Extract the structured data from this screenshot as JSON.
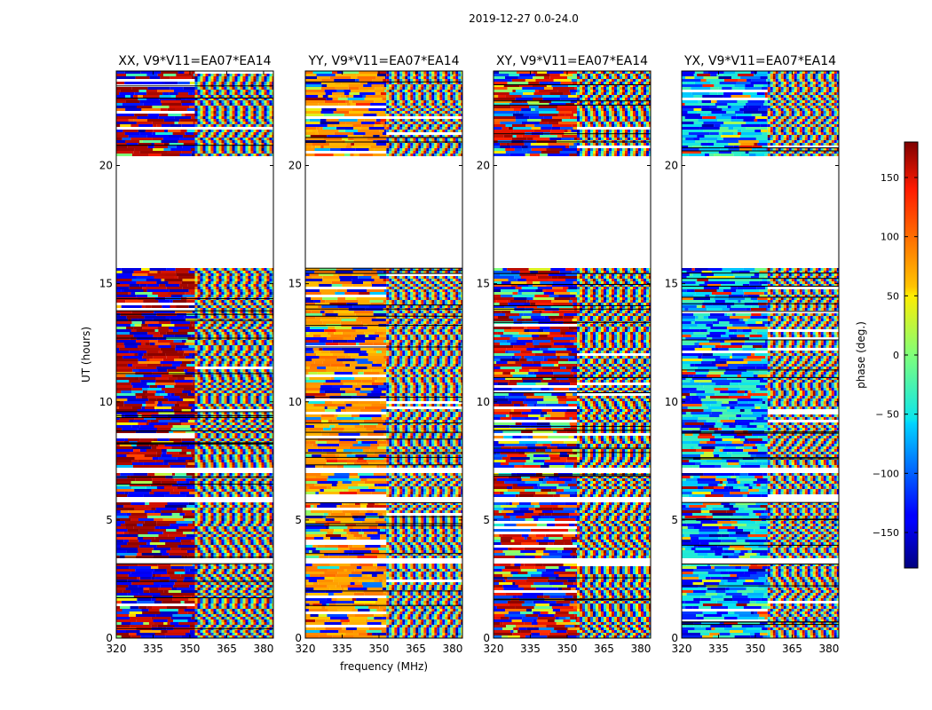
{
  "figure_title": "2019-12-27 0.0-24.0",
  "chart_data": [
    {
      "type": "heatmap",
      "title": "XX, V9*V11=EA07*EA14",
      "xlabel": "",
      "ylabel": "UT (hours)",
      "x_ticks": [
        320,
        335,
        350,
        365,
        380
      ],
      "y_ticks": [
        0,
        5,
        10,
        15,
        20
      ],
      "xlim": [
        320,
        384
      ],
      "ylim": [
        0,
        24
      ],
      "gaps_hours": [
        [
          15.7,
          20.4
        ],
        [
          7.0,
          7.3
        ],
        [
          5.8,
          6.0
        ],
        [
          3.2,
          3.4
        ]
      ],
      "palette_hint": "red-blue"
    },
    {
      "type": "heatmap",
      "title": "YY, V9*V11=EA07*EA14",
      "xlabel": "frequency (MHz)",
      "ylabel": "",
      "x_ticks": [
        320,
        335,
        350,
        365,
        380
      ],
      "y_ticks": [
        0,
        5,
        10,
        15,
        20
      ],
      "xlim": [
        320,
        384
      ],
      "ylim": [
        0,
        24
      ],
      "gaps_hours": [
        [
          15.7,
          20.4
        ],
        [
          7.0,
          7.3
        ],
        [
          5.8,
          6.0
        ],
        [
          3.2,
          3.4
        ]
      ],
      "palette_hint": "orange"
    },
    {
      "type": "heatmap",
      "title": "XY, V9*V11=EA07*EA14",
      "xlabel": "",
      "ylabel": "",
      "x_ticks": [
        320,
        335,
        350,
        365,
        380
      ],
      "y_ticks": [
        0,
        5,
        10,
        15,
        20
      ],
      "xlim": [
        320,
        384
      ],
      "ylim": [
        0,
        24
      ],
      "gaps_hours": [
        [
          15.7,
          20.4
        ],
        [
          7.0,
          7.3
        ],
        [
          5.8,
          6.0
        ],
        [
          3.2,
          3.4
        ]
      ],
      "palette_hint": "mixed"
    },
    {
      "type": "heatmap",
      "title": "YX, V9*V11=EA07*EA14",
      "xlabel": "",
      "ylabel": "",
      "x_ticks": [
        320,
        335,
        350,
        365,
        380
      ],
      "y_ticks": [
        0,
        5,
        10,
        15,
        20
      ],
      "xlim": [
        320,
        384
      ],
      "ylim": [
        0,
        24
      ],
      "gaps_hours": [
        [
          15.7,
          20.4
        ],
        [
          7.0,
          7.3
        ],
        [
          5.8,
          6.0
        ],
        [
          3.2,
          3.4
        ]
      ],
      "palette_hint": "cyan-blue"
    }
  ],
  "colorbar": {
    "label": "phase (deg.)",
    "range": [
      -180,
      180
    ],
    "ticks": [
      150,
      100,
      50,
      0,
      -50,
      -100,
      -150
    ],
    "tick_labels": [
      "150",
      "100",
      "50",
      "0",
      "− 50",
      "−100",
      "−150"
    ]
  }
}
